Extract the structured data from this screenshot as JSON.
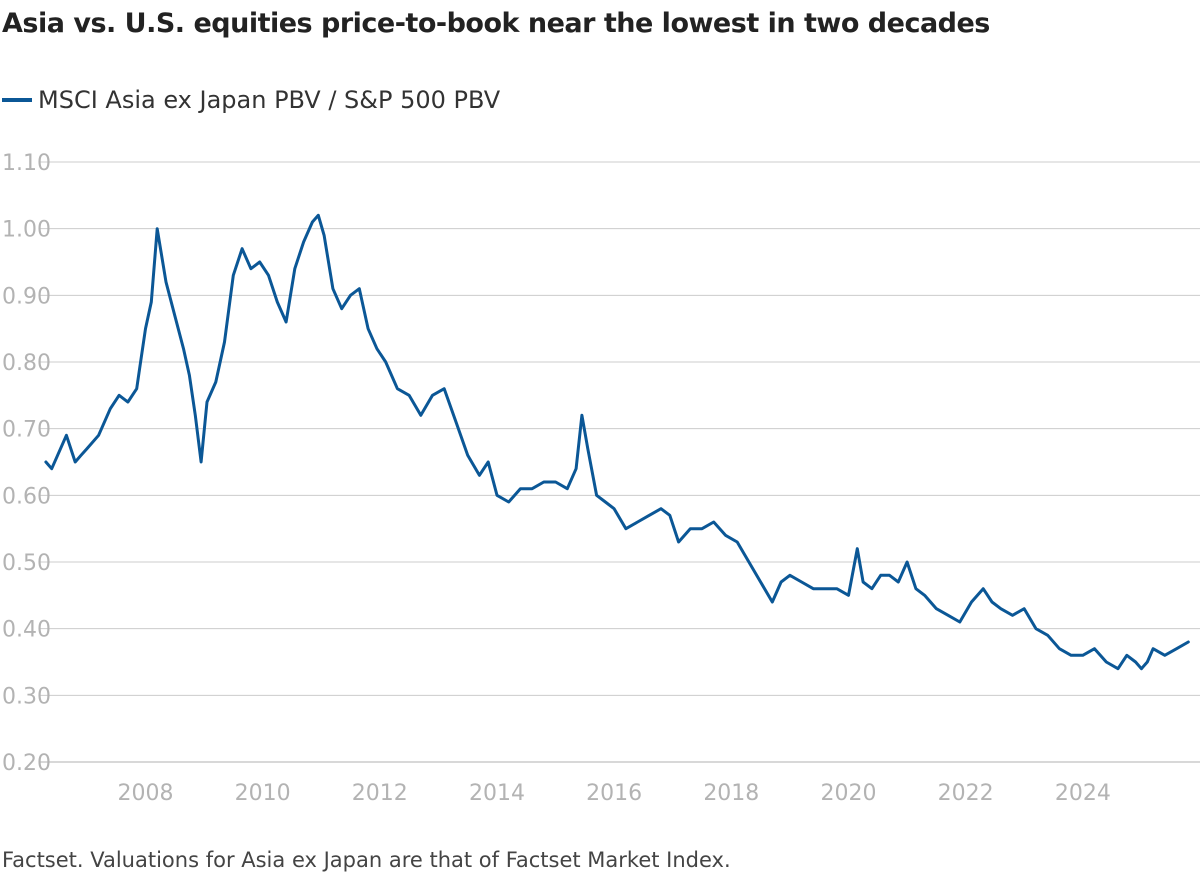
{
  "header": {
    "title": "Asia vs. U.S. equities price-to-book near the lowest in two decades"
  },
  "legend": {
    "label": "MSCI Asia ex Japan PBV / S&P 500 PBV"
  },
  "footer": {
    "note": "Factset. Valuations for Asia ex Japan are that of Factset Market Index."
  },
  "colors": {
    "series": "#0b5796",
    "grid": "#cccccc",
    "tick_label": "#b3b3b3"
  },
  "chart_data": {
    "type": "line",
    "title": "Asia vs. U.S. equities price-to-book near the lowest in two decades",
    "xlabel": "",
    "ylabel": "",
    "xlim": [
      2006.2,
      2026.0
    ],
    "ylim": [
      0.2,
      1.1
    ],
    "grid": true,
    "legend_position": "top-left",
    "y_ticks": [
      0.2,
      0.3,
      0.4,
      0.5,
      0.6,
      0.7,
      0.8,
      0.9,
      1.0,
      1.1
    ],
    "y_tick_labels": [
      "0.20",
      "0.30",
      "0.40",
      "0.50",
      "0.60",
      "0.70",
      "0.80",
      "0.90",
      "1.00",
      "1.10"
    ],
    "x_ticks": [
      2008,
      2010,
      2012,
      2014,
      2016,
      2018,
      2020,
      2022,
      2024
    ],
    "x_tick_labels": [
      "2008",
      "2010",
      "2012",
      "2014",
      "2016",
      "2018",
      "2020",
      "2022",
      "2024"
    ],
    "series": [
      {
        "name": "MSCI Asia ex Japan PBV / S&P 500 PBV",
        "x": [
          2006.3,
          2006.4,
          2006.5,
          2006.65,
          2006.8,
          2006.9,
          2007.0,
          2007.2,
          2007.4,
          2007.55,
          2007.7,
          2007.85,
          2007.9,
          2008.0,
          2008.1,
          2008.2,
          2008.35,
          2008.5,
          2008.65,
          2008.75,
          2008.85,
          2008.95,
          2009.05,
          2009.2,
          2009.35,
          2009.5,
          2009.65,
          2009.8,
          2009.95,
          2010.1,
          2010.25,
          2010.4,
          2010.55,
          2010.7,
          2010.85,
          2010.95,
          2011.05,
          2011.2,
          2011.35,
          2011.5,
          2011.65,
          2011.8,
          2011.95,
          2012.1,
          2012.3,
          2012.5,
          2012.7,
          2012.9,
          2013.1,
          2013.3,
          2013.5,
          2013.7,
          2013.85,
          2014.0,
          2014.2,
          2014.4,
          2014.6,
          2014.8,
          2015.0,
          2015.2,
          2015.35,
          2015.45,
          2015.55,
          2015.7,
          2015.85,
          2016.0,
          2016.2,
          2016.4,
          2016.6,
          2016.8,
          2016.95,
          2017.1,
          2017.3,
          2017.5,
          2017.7,
          2017.9,
          2018.1,
          2018.3,
          2018.5,
          2018.7,
          2018.85,
          2019.0,
          2019.2,
          2019.4,
          2019.6,
          2019.8,
          2020.0,
          2020.15,
          2020.25,
          2020.4,
          2020.55,
          2020.7,
          2020.85,
          2021.0,
          2021.15,
          2021.3,
          2021.5,
          2021.7,
          2021.9,
          2022.1,
          2022.3,
          2022.45,
          2022.6,
          2022.8,
          2023.0,
          2023.2,
          2023.4,
          2023.6,
          2023.8,
          2024.0,
          2024.2,
          2024.4,
          2024.6,
          2024.75,
          2024.9,
          2025.0,
          2025.1,
          2025.2,
          2025.4,
          2025.6,
          2025.8
        ],
        "values": [
          0.65,
          0.64,
          0.66,
          0.69,
          0.65,
          0.66,
          0.67,
          0.69,
          0.73,
          0.75,
          0.74,
          0.76,
          0.79,
          0.85,
          0.89,
          1.0,
          0.92,
          0.87,
          0.82,
          0.78,
          0.72,
          0.65,
          0.74,
          0.77,
          0.83,
          0.93,
          0.97,
          0.94,
          0.95,
          0.93,
          0.89,
          0.86,
          0.94,
          0.98,
          1.01,
          1.02,
          0.99,
          0.91,
          0.88,
          0.9,
          0.91,
          0.85,
          0.82,
          0.8,
          0.76,
          0.75,
          0.72,
          0.75,
          0.76,
          0.71,
          0.66,
          0.63,
          0.65,
          0.6,
          0.59,
          0.61,
          0.61,
          0.62,
          0.62,
          0.61,
          0.64,
          0.72,
          0.67,
          0.6,
          0.59,
          0.58,
          0.55,
          0.56,
          0.57,
          0.58,
          0.57,
          0.53,
          0.55,
          0.55,
          0.56,
          0.54,
          0.53,
          0.5,
          0.47,
          0.44,
          0.47,
          0.48,
          0.47,
          0.46,
          0.46,
          0.46,
          0.45,
          0.52,
          0.47,
          0.46,
          0.48,
          0.48,
          0.47,
          0.5,
          0.46,
          0.45,
          0.43,
          0.42,
          0.41,
          0.44,
          0.46,
          0.44,
          0.43,
          0.42,
          0.43,
          0.4,
          0.39,
          0.37,
          0.36,
          0.36,
          0.37,
          0.35,
          0.34,
          0.36,
          0.35,
          0.34,
          0.35,
          0.37,
          0.36,
          0.37,
          0.38
        ]
      }
    ]
  }
}
